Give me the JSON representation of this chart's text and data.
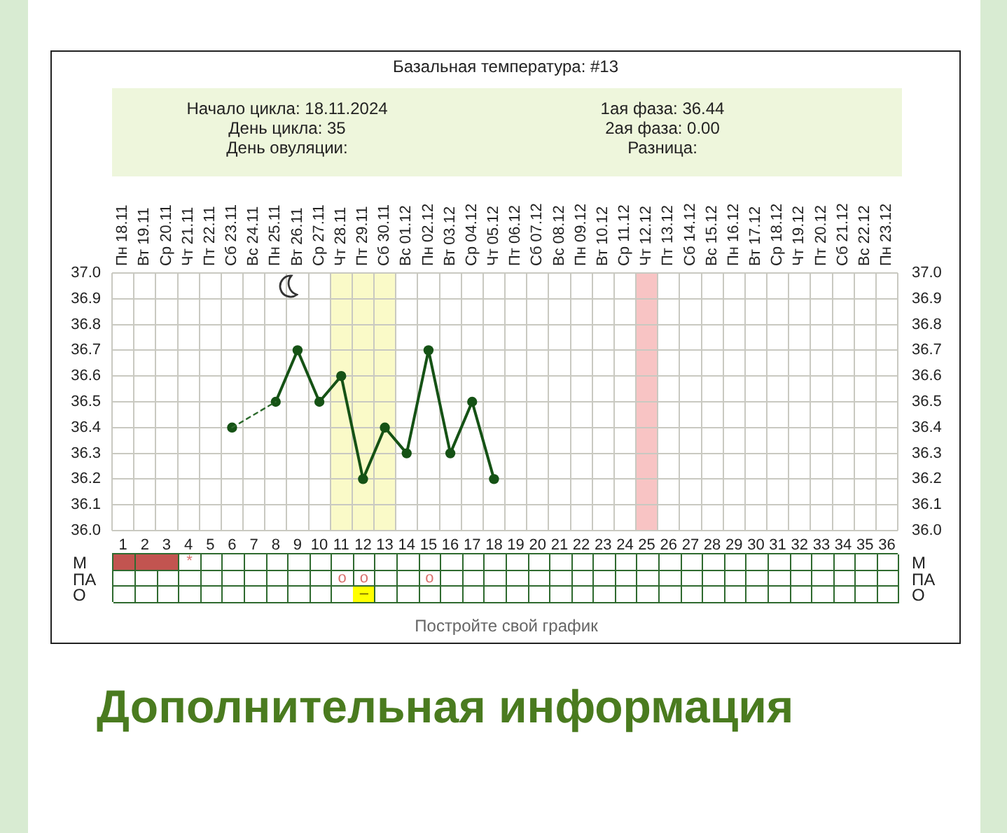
{
  "chart_data": [
    {
      "type": "line",
      "title": "Базальная температура: #13",
      "annotations": [
        "Начало цикла: 18.11.2024",
        "День цикла: 35",
        "День овуляции:",
        "1ая фаза: 36.44",
        "2ая фаза: 0.00",
        "Разница:"
      ],
      "xlim": [
        0.5,
        36.5
      ],
      "xticks": [
        1,
        2,
        3,
        4,
        5,
        6,
        7,
        8,
        9,
        10,
        11,
        12,
        13,
        14,
        15,
        16,
        17,
        18,
        19,
        20,
        21,
        22,
        23,
        24,
        25,
        26,
        27,
        28,
        29,
        30,
        31,
        32,
        33,
        34,
        35,
        36
      ],
      "x2lim": [
        "2024-11-17T12:00",
        "2024-12-23T12:00"
      ],
      "x2ticks": [
        {
          "value": "2024-11-18",
          "label": "Пн 18.11"
        },
        {
          "value": "2024-11-19",
          "label": "Вт 19.11"
        },
        {
          "value": "2024-11-20",
          "label": "Ср 20.11"
        },
        {
          "value": "2024-11-21",
          "label": "Чт 21.11"
        },
        {
          "value": "2024-11-22",
          "label": "Пт 22.11"
        },
        {
          "value": "2024-11-23",
          "label": "Сб 23.11"
        },
        {
          "value": "2024-11-24",
          "label": "Вс 24.11"
        },
        {
          "value": "2024-11-25",
          "label": "Пн 25.11"
        },
        {
          "value": "2024-11-26",
          "label": "Вт 26.11"
        },
        {
          "value": "2024-11-27",
          "label": "Ср 27.11"
        },
        {
          "value": "2024-11-28",
          "label": "Чт 28.11"
        },
        {
          "value": "2024-11-29",
          "label": "Пт 29.11"
        },
        {
          "value": "2024-11-30",
          "label": "Сб 30.11"
        },
        {
          "value": "2024-12-01",
          "label": "Вс 01.12"
        },
        {
          "value": "2024-12-02",
          "label": "Пн 02.12"
        },
        {
          "value": "2024-12-03",
          "label": "Вт 03.12"
        },
        {
          "value": "2024-12-04",
          "label": "Ср 04.12"
        },
        {
          "value": "2024-12-05",
          "label": "Чт 05.12"
        },
        {
          "value": "2024-12-06",
          "label": "Пт 06.12"
        },
        {
          "value": "2024-12-07",
          "label": "Сб 07.12"
        },
        {
          "value": "2024-12-08",
          "label": "Вс 08.12"
        },
        {
          "value": "2024-12-09",
          "label": "Пн 09.12"
        },
        {
          "value": "2024-12-10",
          "label": "Вт 10.12"
        },
        {
          "value": "2024-12-11",
          "label": "Ср 11.12"
        },
        {
          "value": "2024-12-12",
          "label": "Чт 12.12"
        },
        {
          "value": "2024-12-13",
          "label": "Пт 13.12"
        },
        {
          "value": "2024-12-14",
          "label": "Сб 14.12"
        },
        {
          "value": "2024-12-15",
          "label": "Вс 15.12"
        },
        {
          "value": "2024-12-16",
          "label": "Пн 16.12"
        },
        {
          "value": "2024-12-17",
          "label": "Вт 17.12"
        },
        {
          "value": "2024-12-18",
          "label": "Ср 18.12"
        },
        {
          "value": "2024-12-19",
          "label": "Чт 19.12"
        },
        {
          "value": "2024-12-20",
          "label": "Пт 20.12"
        },
        {
          "value": "2024-12-21",
          "label": "Сб 21.12"
        },
        {
          "value": "2024-12-22",
          "label": "Вс 22.12"
        },
        {
          "value": "2024-12-23",
          "label": "Пн 23.12"
        }
      ],
      "ylim": [
        36,
        37
      ],
      "yticks": [
        {
          "value": 36,
          "label": "36.0"
        },
        36.1,
        36.2,
        36.3,
        36.4,
        36.5,
        36.6,
        36.7,
        36.8,
        36.9,
        {
          "value": 37,
          "label": "37.0"
        }
      ],
      "y2lim": [
        36,
        37
      ],
      "y2ticks": [
        {
          "value": 36,
          "label": "36.0"
        },
        36.1,
        36.2,
        36.3,
        36.4,
        36.5,
        36.6,
        36.7,
        36.8,
        36.9,
        {
          "value": 37,
          "label": "37.0"
        }
      ],
      "grid": true,
      "bands": [
        {
          "axis": "x",
          "from": 10.5,
          "to": 13.5,
          "color": "#fafac8"
        },
        {
          "axis": "x",
          "from": 24.5,
          "to": 25.5,
          "color": "#f8c4c4"
        }
      ],
      "series": [
        {
          "x": [
            6,
            8
          ],
          "values": [
            36.4,
            36.5
          ],
          "color": "#2d6a2d",
          "line_style": "dashed",
          "marker": "none"
        },
        {
          "x": [
            6,
            7,
            8,
            9,
            10,
            11,
            12,
            13,
            14,
            15,
            16,
            17,
            18
          ],
          "values": [
            36.4,
            null,
            36.5,
            36.7,
            36.5,
            36.6,
            36.2,
            36.4,
            36.3,
            36.7,
            36.3,
            36.5,
            36.2
          ],
          "color": "#155215",
          "marker": "circle"
        }
      ]
    },
    {
      "type": "other",
      "y_categories": [
        "М",
        "ПА",
        "О"
      ],
      "y2_categories": [
        "М",
        "ПА",
        "О"
      ],
      "cell_labels": [
        [
          null,
          null,
          null,
          "*",
          null,
          null,
          null,
          null,
          null,
          null,
          null,
          null,
          null,
          null,
          null,
          null,
          null,
          null,
          null,
          null,
          null,
          null,
          null,
          null,
          null,
          null,
          null,
          null,
          null,
          null,
          null,
          null,
          null,
          null,
          null,
          null
        ],
        [
          null,
          null,
          null,
          null,
          null,
          null,
          null,
          null,
          null,
          null,
          "o",
          "o",
          null,
          null,
          "o",
          null,
          null,
          null,
          null,
          null,
          null,
          null,
          null,
          null,
          null,
          null,
          null,
          null,
          null,
          null,
          null,
          null,
          null,
          null,
          null,
          null
        ],
        [
          null,
          null,
          null,
          null,
          null,
          null,
          null,
          null,
          null,
          null,
          null,
          "–",
          null,
          null,
          null,
          null,
          null,
          null,
          null,
          null,
          null,
          null,
          null,
          null,
          null,
          null,
          null,
          null,
          null,
          null,
          null,
          null,
          null,
          null,
          null,
          null
        ]
      ],
      "colors": [
        [
          "#c25450",
          "#c25450",
          "#c25450",
          null,
          null,
          null,
          null,
          null,
          null,
          null,
          null,
          null,
          null,
          null,
          null,
          null,
          null,
          null,
          null,
          null,
          null,
          null,
          null,
          null,
          null,
          null,
          null,
          null,
          null,
          null,
          null,
          null,
          null,
          null,
          null,
          null
        ],
        [
          null,
          null,
          null,
          null,
          null,
          null,
          null,
          null,
          null,
          null,
          null,
          null,
          null,
          null,
          null,
          null,
          null,
          null,
          null,
          null,
          null,
          null,
          null,
          null,
          null,
          null,
          null,
          null,
          null,
          null,
          null,
          null,
          null,
          null,
          null,
          null
        ],
        [
          null,
          null,
          null,
          null,
          null,
          null,
          null,
          null,
          null,
          null,
          null,
          "#ffff00",
          null,
          null,
          null,
          null,
          null,
          null,
          null,
          null,
          null,
          null,
          null,
          null,
          null,
          null,
          null,
          null,
          null,
          null,
          null,
          null,
          null,
          null,
          null,
          null
        ]
      ],
      "annotations": [
        "Постройте свой график",
        "Дополнительная информация"
      ]
    }
  ]
}
